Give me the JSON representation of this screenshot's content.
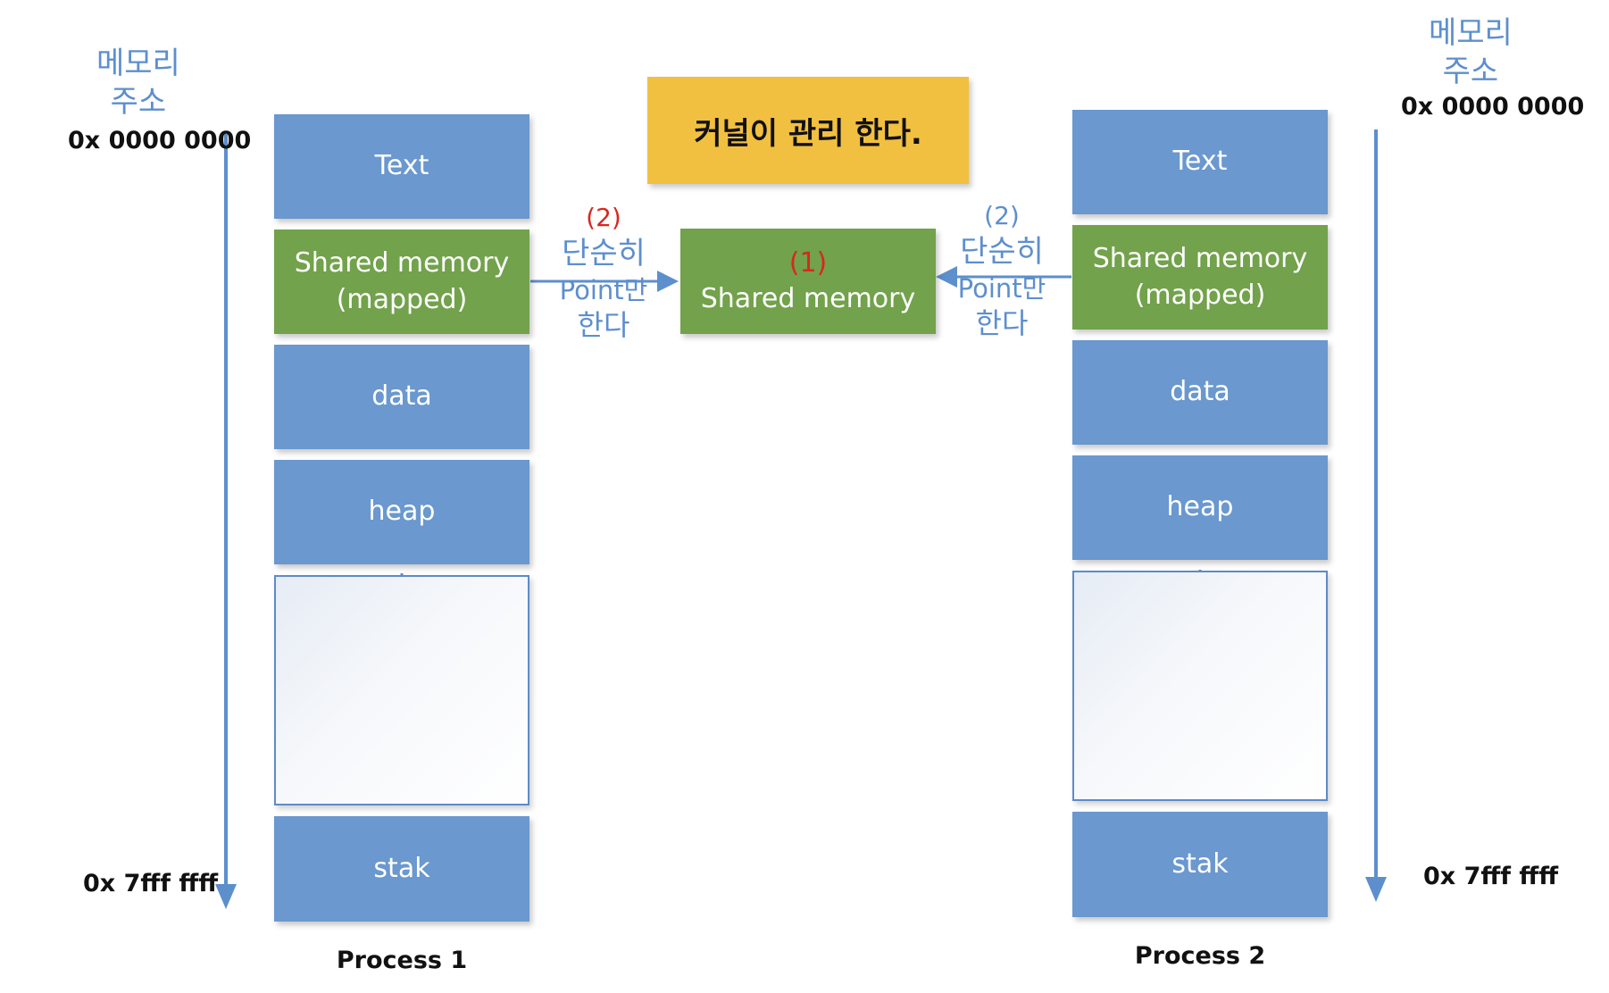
{
  "kernel": {
    "label": "커널이 관리 한다."
  },
  "center": {
    "step": "(1)",
    "label": "Shared memory"
  },
  "process1": {
    "name": "Process 1",
    "addr_axis": "메모리\n주소",
    "addr_start": "0x 0000 0000",
    "addr_end": "0x 7fff ffff",
    "segments": {
      "text": "Text",
      "shared": "Shared memory\n(mapped)",
      "data": "data",
      "heap": "heap",
      "stack": "stak"
    }
  },
  "process2": {
    "name": "Process 2",
    "addr_axis": "메모리\n주소",
    "addr_start": "0x 0000 0000",
    "addr_end": "0x 7fff ffff",
    "segments": {
      "text": "Text",
      "shared": "Shared memory\n(mapped)",
      "data": "data",
      "heap": "heap",
      "stack": "stak"
    }
  },
  "note_left": {
    "step": "(2)",
    "line1": "단순히",
    "line2": "Point만",
    "line3": "한다"
  },
  "note_right": {
    "step": "(2)",
    "line1": "단순히",
    "line2": "Point만",
    "line3": "한다"
  },
  "colors": {
    "segment_blue": "#6a98cf",
    "segment_green": "#72a24b",
    "kernel_box": "#f2c040",
    "arrow": "#5d8fcd",
    "step_red": "#d7281f"
  }
}
